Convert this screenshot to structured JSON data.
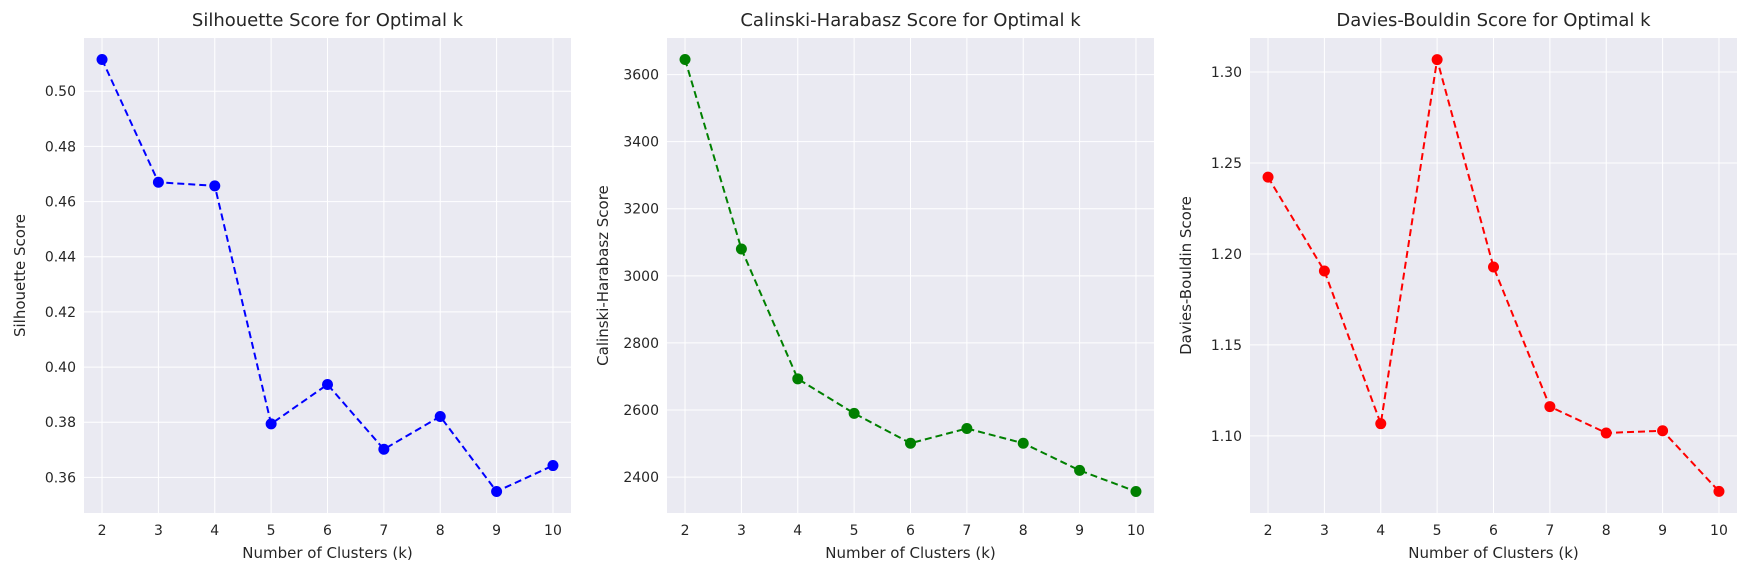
{
  "chart_data": [
    {
      "type": "line",
      "title": "Silhouette Score for Optimal k",
      "xlabel": "Number of Clusters (k)",
      "ylabel": "Silhouette Score",
      "x": [
        2,
        3,
        4,
        5,
        6,
        7,
        8,
        9,
        10
      ],
      "y": [
        0.5115,
        0.467,
        0.4657,
        0.3794,
        0.3937,
        0.3702,
        0.3821,
        0.3549,
        0.3643
      ],
      "xlim": [
        1.68,
        10.32
      ],
      "ylim": [
        0.3471,
        0.5193
      ],
      "xticks": [
        "2",
        "3",
        "4",
        "5",
        "6",
        "7",
        "8",
        "9",
        "10"
      ],
      "yticks": [
        0.36,
        0.38,
        0.4,
        0.42,
        0.44,
        0.46,
        0.48,
        0.5
      ],
      "ytick_labels": [
        "0.36",
        "0.38",
        "0.40",
        "0.42",
        "0.44",
        "0.46",
        "0.48",
        "0.50"
      ],
      "color": "#0000ff",
      "line_style": "dashed",
      "marker": "circle",
      "grid": true
    },
    {
      "type": "line",
      "title": "Calinski-Harabasz Score for Optimal k",
      "xlabel": "Number of Clusters (k)",
      "ylabel": "Calinski-Harabasz Score",
      "x": [
        2,
        3,
        4,
        5,
        6,
        7,
        8,
        9,
        10
      ],
      "y": [
        3645,
        3080,
        2693,
        2590,
        2501,
        2545,
        2501,
        2420,
        2357
      ],
      "xlim": [
        1.68,
        10.32
      ],
      "ylim": [
        2293,
        3709
      ],
      "xticks": [
        "2",
        "3",
        "4",
        "5",
        "6",
        "7",
        "8",
        "9",
        "10"
      ],
      "yticks": [
        2400,
        2600,
        2800,
        3000,
        3200,
        3400,
        3600
      ],
      "ytick_labels": [
        "2400",
        "2600",
        "2800",
        "3000",
        "3200",
        "3400",
        "3600"
      ],
      "color": "#008000",
      "line_style": "dashed",
      "marker": "circle",
      "grid": true
    },
    {
      "type": "line",
      "title": "Davies-Bouldin Score for Optimal k",
      "xlabel": "Number of Clusters (k)",
      "ylabel": "Davies-Bouldin Score",
      "x": [
        2,
        3,
        4,
        5,
        6,
        7,
        8,
        9,
        10
      ],
      "y": [
        1.2422,
        1.1906,
        1.1067,
        1.3068,
        1.1928,
        1.1161,
        1.1016,
        1.1028,
        1.0695
      ],
      "xlim": [
        1.68,
        10.32
      ],
      "ylim": [
        1.0576,
        1.3187
      ],
      "xticks": [
        "2",
        "3",
        "4",
        "5",
        "6",
        "7",
        "8",
        "9",
        "10"
      ],
      "yticks": [
        1.1,
        1.15,
        1.2,
        1.25,
        1.3
      ],
      "ytick_labels": [
        "1.10",
        "1.15",
        "1.20",
        "1.25",
        "1.30"
      ],
      "color": "#ff0000",
      "line_style": "dashed",
      "marker": "circle",
      "grid": true
    }
  ]
}
